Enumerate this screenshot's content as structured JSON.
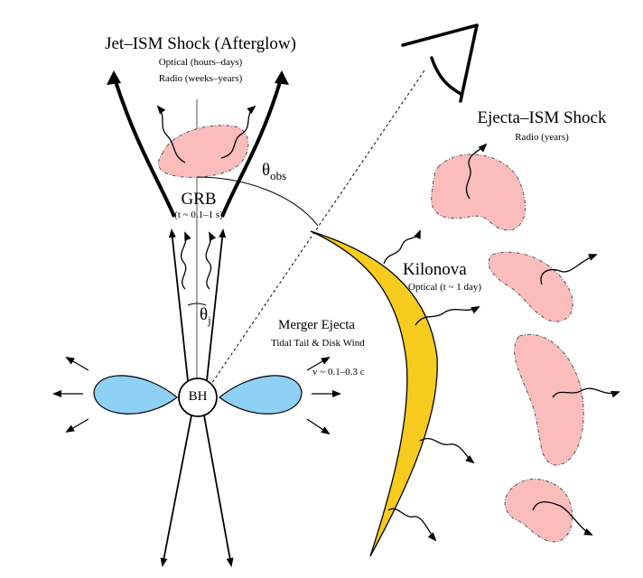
{
  "labels": {
    "jet_title": "Jet–ISM Shock (Afterglow)",
    "jet_optical": "Optical (hours–days)",
    "jet_radio": "Radio (weeks–years)",
    "ejecta_title": "Ejecta–ISM Shock",
    "ejecta_radio": "Radio (years)",
    "theta_obs_main": "θ",
    "theta_obs_sub": "obs",
    "grb": "GRB",
    "grb_time": "(t ~ 0.1–1 s)",
    "kilonova": "Kilonova",
    "kilonova_optical": "Optical (t ~ 1 day)",
    "theta_j_main": "θ",
    "theta_j_sub": "j",
    "merger_title": "Merger Ejecta",
    "merger_sub": "Tidal Tail & Disk Wind",
    "velocity": "v ~ 0.1–0.3 c",
    "bh": "BH"
  },
  "colors": {
    "shock_fill": "#fbbcbc",
    "kilonova_fill": "#f7cc1e",
    "torus_fill": "#8fd0f5",
    "line": "#000000"
  }
}
